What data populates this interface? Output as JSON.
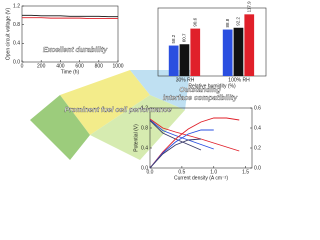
{
  "chart_data": [
    {
      "type": "line",
      "xlabel": "Time (h)",
      "ylabel": "Open circuit voltage (V)",
      "annotation": "Excellent durability",
      "x": [
        0,
        100,
        200,
        300,
        400,
        500,
        600,
        700,
        800,
        900,
        1000
      ],
      "xlim": [
        0,
        1000
      ],
      "xticks": [
        0,
        200,
        400,
        600,
        800,
        1000
      ],
      "ylim": [
        0,
        1.2
      ],
      "yticks": [
        {
          "value": 0,
          "label": "0.0"
        },
        0.4,
        0.8,
        1.2
      ],
      "series": [
        {
          "color": "#111111",
          "values": [
            1.0,
            1.0,
            0.99,
            0.99,
            0.99,
            0.98,
            0.98,
            0.98,
            0.98,
            0.97,
            0.97
          ]
        },
        {
          "color": "#e0202a",
          "values": [
            0.95,
            0.95,
            0.95,
            0.94,
            0.94,
            0.94,
            0.94,
            0.93,
            0.93,
            0.93,
            0.93
          ]
        }
      ]
    },
    {
      "type": "bar",
      "xlabel": "Relative humidity (%)",
      "annotation": "Outstanding",
      "annotation2": "interface compatibility",
      "categories": [
        "30% RH",
        "100% RH"
      ],
      "ylim": [
        0,
        130
      ],
      "yticks": [],
      "series": [
        {
          "color": "#2a4fe0",
          "values": [
            58.2,
            88.8
          ],
          "value_labels": [
            "58.2",
            "88.8"
          ]
        },
        {
          "color": "#111111",
          "values": [
            60.7,
            92.2
          ],
          "value_labels": [
            "60.7",
            "92.2"
          ]
        },
        {
          "color": "#e0202a",
          "values": [
            90.6,
            117.9
          ],
          "value_labels": [
            "90.6",
            "117.9"
          ]
        }
      ]
    },
    {
      "type": "line",
      "xlabel": "Current density (A cm⁻²)",
      "ylabel": "Potential (V)",
      "annotation": "Prominent fuel cell performance",
      "x": [
        0,
        0.2,
        0.4,
        0.6,
        0.8,
        1.0,
        1.2,
        1.4
      ],
      "xlim": [
        0,
        1.6
      ],
      "xticks": [
        {
          "value": 0,
          "label": "0.0"
        },
        0.5,
        {
          "value": 1,
          "label": "1.0"
        },
        1.5
      ],
      "ylim": [
        0,
        1.2
      ],
      "yticks": [
        {
          "value": 0,
          "label": "0.0"
        },
        0.4,
        0.8,
        1.2
      ],
      "y2lim": [
        0,
        0.6
      ],
      "y2ticks": [
        {
          "value": 0,
          "label": "0.0"
        },
        0.2,
        0.4,
        0.6
      ],
      "series": [
        {
          "color": "#e0202a",
          "values": [
            0.98,
            0.8,
            0.72,
            0.65,
            0.58,
            0.5,
            0.42,
            0.34
          ]
        },
        {
          "color": "#2a4fe0",
          "values": [
            0.96,
            0.75,
            0.65,
            0.56,
            0.47,
            0.38,
            null,
            null
          ]
        },
        {
          "color": "#3a3a6a",
          "values": [
            0.95,
            0.7,
            0.58,
            0.47,
            0.36,
            null,
            null,
            null
          ]
        },
        {
          "color": "#e0202a",
          "axis": "y2",
          "values": [
            0,
            0.16,
            0.29,
            0.39,
            0.46,
            0.5,
            0.5,
            0.48
          ]
        },
        {
          "color": "#2a4fe0",
          "axis": "y2",
          "values": [
            0,
            0.15,
            0.26,
            0.34,
            0.38,
            0.38,
            null,
            null
          ]
        },
        {
          "color": "#3a3a6a",
          "axis": "y2",
          "values": [
            0,
            0.14,
            0.23,
            0.28,
            0.29,
            null,
            null,
            null
          ]
        }
      ]
    }
  ]
}
